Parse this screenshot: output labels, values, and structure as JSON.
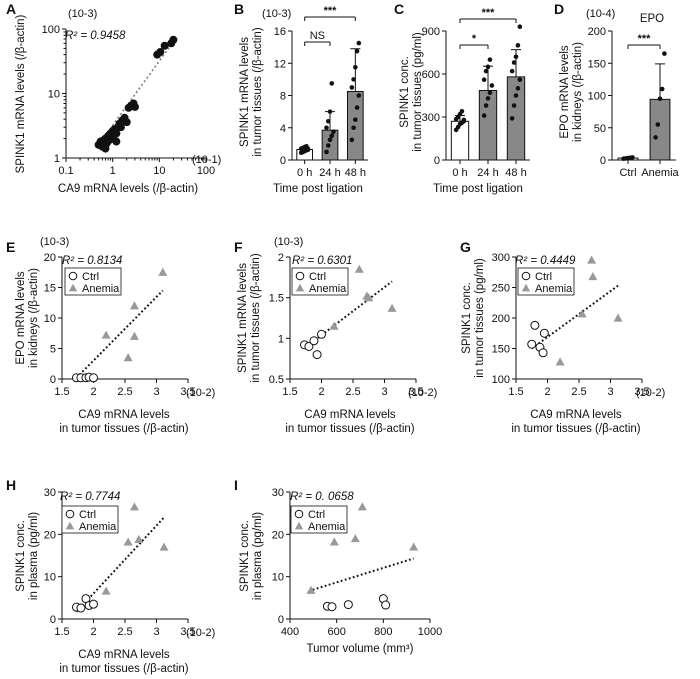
{
  "chart_data": [
    {
      "panel": "A",
      "type": "scatter",
      "xscale": "log",
      "yscale": "log",
      "xlabel": "CA9 mRNA levels (/β-actin)",
      "ylabel": "SPINK1 mRNA levels (/β-actin)",
      "x_multiplier": "(10-1)",
      "y_multiplier": "(10-3)",
      "xlim": [
        0.1,
        100
      ],
      "ylim": [
        1,
        100
      ],
      "xticks": [
        0.1,
        1,
        10,
        100
      ],
      "xtick_labels": [
        "0.1",
        "1",
        "10",
        "100"
      ],
      "yticks": [
        1,
        10,
        100
      ],
      "ytick_labels": [
        "1",
        "10",
        "100"
      ],
      "r2": "R² = 0.9458",
      "trendline": true,
      "points": [
        [
          0.5,
          1.6
        ],
        [
          0.55,
          1.8
        ],
        [
          0.6,
          1.5
        ],
        [
          0.65,
          1.9
        ],
        [
          0.7,
          2.0
        ],
        [
          0.75,
          1.7
        ],
        [
          0.8,
          2.2
        ],
        [
          0.85,
          1.9
        ],
        [
          0.9,
          2.4
        ],
        [
          0.95,
          2.1
        ],
        [
          1.0,
          2.6
        ],
        [
          1.0,
          2.0
        ],
        [
          1.1,
          2.8
        ],
        [
          1.2,
          2.4
        ],
        [
          1.3,
          3.0
        ],
        [
          1.4,
          3.4
        ],
        [
          1.5,
          3.0
        ],
        [
          1.6,
          3.8
        ],
        [
          1.8,
          4.2
        ],
        [
          2.0,
          3.6
        ],
        [
          2.2,
          6.0
        ],
        [
          2.5,
          6.5
        ],
        [
          2.8,
          7.0
        ],
        [
          3.0,
          6.2
        ],
        [
          1.2,
          1.8
        ],
        [
          0.7,
          1.4
        ],
        [
          9.0,
          40
        ],
        [
          10.5,
          44
        ],
        [
          13.0,
          55
        ],
        [
          18.0,
          60
        ],
        [
          20.0,
          68
        ]
      ]
    },
    {
      "panel": "B",
      "type": "bar",
      "categories": [
        "0 h",
        "24 h",
        "48 h"
      ],
      "values": [
        1.3,
        3.7,
        8.5
      ],
      "errors": [
        0.3,
        2.3,
        5.3
      ],
      "xlabel": "Time post ligation",
      "ylabel": "SPINK1 mRNA levels in tumor tissues (/β-actin)",
      "y_multiplier": "(10-3)",
      "ylim": [
        0,
        16
      ],
      "yticks": [
        0,
        4,
        8,
        12,
        16
      ],
      "bar_colors": [
        "#ffffff",
        "#888888",
        "#888888"
      ],
      "points": [
        [
          0.9,
          1.0,
          1.1,
          1.2,
          1.3,
          1.4,
          1.5,
          1.6,
          1.7,
          1.3
        ],
        [
          1.0,
          1.8,
          2.5,
          3.0,
          3.5,
          4.0,
          4.8,
          6.0,
          9.5
        ],
        [
          2.5,
          4.0,
          5.0,
          6.5,
          8.0,
          9.0,
          10.0,
          11.5,
          13.5,
          14.5
        ]
      ],
      "significance": [
        {
          "from": 0,
          "to": 1,
          "label": "NS"
        },
        {
          "from": 0,
          "to": 2,
          "label": "***"
        }
      ]
    },
    {
      "panel": "C",
      "type": "bar",
      "categories": [
        "0 h",
        "24 h",
        "48 h"
      ],
      "values": [
        270,
        485,
        580
      ],
      "errors": [
        40,
        170,
        190
      ],
      "xlabel": "Time post ligation",
      "ylabel": "SPINK1 conc. in tumor tissues (pg/ml)",
      "ylim": [
        0,
        900
      ],
      "yticks": [
        0,
        300,
        600,
        900
      ],
      "bar_colors": [
        "#ffffff",
        "#888888",
        "#888888"
      ],
      "points": [
        [
          210,
          230,
          250,
          260,
          270,
          285,
          300,
          320,
          340,
          280
        ],
        [
          310,
          380,
          430,
          470,
          520,
          560,
          620,
          650,
          700
        ],
        [
          290,
          380,
          450,
          500,
          560,
          620,
          680,
          720,
          800,
          930
        ]
      ],
      "significance": [
        {
          "from": 0,
          "to": 1,
          "label": "*"
        },
        {
          "from": 0,
          "to": 2,
          "label": "***"
        }
      ]
    },
    {
      "panel": "D",
      "type": "bar",
      "title": "EPO",
      "categories": [
        "Ctrl",
        "Anemia"
      ],
      "values": [
        3,
        94
      ],
      "errors": [
        0.5,
        55
      ],
      "ylabel": "EPO mRNA levels in kidneys (/β-actin)",
      "y_multiplier": "(10-4)",
      "ylim": [
        0,
        200
      ],
      "yticks": [
        0,
        50,
        100,
        150,
        200
      ],
      "bar_colors": [
        "#ffffff",
        "#888888"
      ],
      "points": [
        [
          2,
          2.5,
          3,
          3.5,
          4
        ],
        [
          35,
          55,
          95,
          110,
          165
        ]
      ],
      "significance": [
        {
          "from": 0,
          "to": 1,
          "label": "***"
        }
      ]
    },
    {
      "panel": "E",
      "type": "scatter",
      "xlabel": "CA9 mRNA levels in tumor tissues (/β-actin)",
      "ylabel": "EPO mRNA levels in kidneys (/β-actin)",
      "x_multiplier": "(10-2)",
      "y_multiplier": "(10-3)",
      "xlim": [
        1.5,
        3.5
      ],
      "ylim": [
        0,
        20
      ],
      "xticks": [
        1.5,
        2.0,
        2.5,
        3.0,
        3.5
      ],
      "yticks": [
        0,
        5,
        10,
        15,
        20
      ],
      "r2": "R² = 0.8134",
      "legend": [
        "Ctrl",
        "Anemia"
      ],
      "series": [
        {
          "name": "Ctrl",
          "points": [
            [
              1.73,
              0.2
            ],
            [
              1.8,
              0.2
            ],
            [
              1.88,
              0.2
            ],
            [
              1.93,
              0.3
            ],
            [
              2.0,
              0.2
            ]
          ]
        },
        {
          "name": "Anemia",
          "points": [
            [
              2.2,
              7.2
            ],
            [
              2.55,
              3.5
            ],
            [
              2.65,
              12.0
            ],
            [
              2.65,
              7.0
            ],
            [
              3.1,
              17.5
            ]
          ]
        }
      ],
      "trend": [
        [
          1.73,
          0.2
        ],
        [
          3.1,
          14.5
        ]
      ]
    },
    {
      "panel": "F",
      "type": "scatter",
      "xlabel": "CA9 mRNA levels in tumor tissues (/β-actin)",
      "ylabel": "SPINK1 mRNA levels in tumor tissues (/β-actin)",
      "x_multiplier": "(10-2)",
      "y_multiplier": "(10-3)",
      "xlim": [
        1.5,
        3.5
      ],
      "ylim": [
        0.5,
        2.0
      ],
      "xticks": [
        1.5,
        2.0,
        2.5,
        3.0,
        3.5
      ],
      "yticks": [
        0.5,
        1.0,
        1.5,
        2.0
      ],
      "ytick_labels": [
        "0.5",
        "1",
        "1.5",
        "2"
      ],
      "r2": "R² = 0.6301",
      "legend": [
        "Ctrl",
        "Anemia"
      ],
      "series": [
        {
          "name": "Ctrl",
          "points": [
            [
              1.73,
              0.92
            ],
            [
              1.8,
              0.9
            ],
            [
              1.88,
              0.97
            ],
            [
              1.93,
              0.8
            ],
            [
              2.0,
              1.05
            ]
          ]
        },
        {
          "name": "Anemia",
          "points": [
            [
              2.2,
              1.15
            ],
            [
              2.6,
              1.85
            ],
            [
              2.72,
              1.52
            ],
            [
              3.12,
              1.37
            ],
            [
              2.75,
              1.5
            ]
          ]
        }
      ],
      "trend": [
        [
          1.73,
          0.88
        ],
        [
          3.12,
          1.7
        ]
      ]
    },
    {
      "panel": "G",
      "type": "scatter",
      "xlabel": "CA9 mRNA levels in tumor tissues (/β-actin)",
      "ylabel": "SPINK1 conc. in tumor tissues (pg/ml)",
      "x_multiplier": "(10-2)",
      "xlim": [
        1.5,
        3.5
      ],
      "ylim": [
        100,
        300
      ],
      "xticks": [
        1.5,
        2.0,
        2.5,
        3.0,
        3.5
      ],
      "yticks": [
        100,
        150,
        200,
        250,
        300
      ],
      "r2": "R² = 0.4449",
      "legend": [
        "Ctrl",
        "Anemia"
      ],
      "series": [
        {
          "name": "Ctrl",
          "points": [
            [
              1.75,
              157
            ],
            [
              1.8,
              188
            ],
            [
              1.88,
              152
            ],
            [
              1.95,
              175
            ],
            [
              1.93,
              143
            ]
          ]
        },
        {
          "name": "Anemia",
          "points": [
            [
              2.2,
              128
            ],
            [
              2.55,
              207
            ],
            [
              2.7,
              295
            ],
            [
              2.72,
              268
            ],
            [
              3.12,
              200
            ]
          ]
        }
      ],
      "trend": [
        [
          1.75,
          150
        ],
        [
          3.12,
          253
        ]
      ]
    },
    {
      "panel": "H",
      "type": "scatter",
      "xlabel": "CA9 mRNA levels in tumor tissues (/β-actin)",
      "ylabel": "SPINK1 conc. in plasma (pg/ml)",
      "x_multiplier": "(10-2)",
      "xlim": [
        1.5,
        3.5
      ],
      "ylim": [
        0,
        30
      ],
      "xticks": [
        1.5,
        2.0,
        2.5,
        3.0,
        3.5
      ],
      "yticks": [
        0,
        10,
        20,
        30
      ],
      "r2": "R² = 0.7744",
      "legend": [
        "Ctrl",
        "Anemia"
      ],
      "series": [
        {
          "name": "Ctrl",
          "points": [
            [
              1.73,
              2.8
            ],
            [
              1.8,
              2.6
            ],
            [
              1.88,
              4.8
            ],
            [
              1.93,
              3.2
            ],
            [
              2.0,
              3.5
            ]
          ]
        },
        {
          "name": "Anemia",
          "points": [
            [
              2.2,
              6.6
            ],
            [
              2.55,
              18.2
            ],
            [
              2.65,
              26.5
            ],
            [
              2.72,
              18.8
            ],
            [
              3.12,
              17.0
            ]
          ]
        }
      ],
      "trend": [
        [
          1.73,
          1.7
        ],
        [
          3.12,
          24.0
        ]
      ]
    },
    {
      "panel": "I",
      "type": "scatter",
      "xlabel": "Tumor volume (mm3)",
      "ylabel": "SPINK1 conc. in plasma (pg/ml)",
      "xlim": [
        400,
        1000
      ],
      "ylim": [
        0,
        30
      ],
      "xticks": [
        400,
        600,
        800,
        1000
      ],
      "yticks": [
        0,
        10,
        20,
        30
      ],
      "r2": "R² = 0. 0658",
      "legend": [
        "Ctrl",
        "Anemia"
      ],
      "series": [
        {
          "name": "Ctrl",
          "points": [
            [
              560,
              3.0
            ],
            [
              580,
              2.9
            ],
            [
              650,
              3.4
            ],
            [
              800,
              4.8
            ],
            [
              810,
              3.3
            ]
          ]
        },
        {
          "name": "Anemia",
          "points": [
            [
              490,
              6.8
            ],
            [
              590,
              18.2
            ],
            [
              680,
              19.0
            ],
            [
              710,
              26.5
            ],
            [
              930,
              17.0
            ]
          ]
        }
      ],
      "trend": [
        [
          480,
          6.6
        ],
        [
          930,
          14.3
        ]
      ]
    }
  ]
}
